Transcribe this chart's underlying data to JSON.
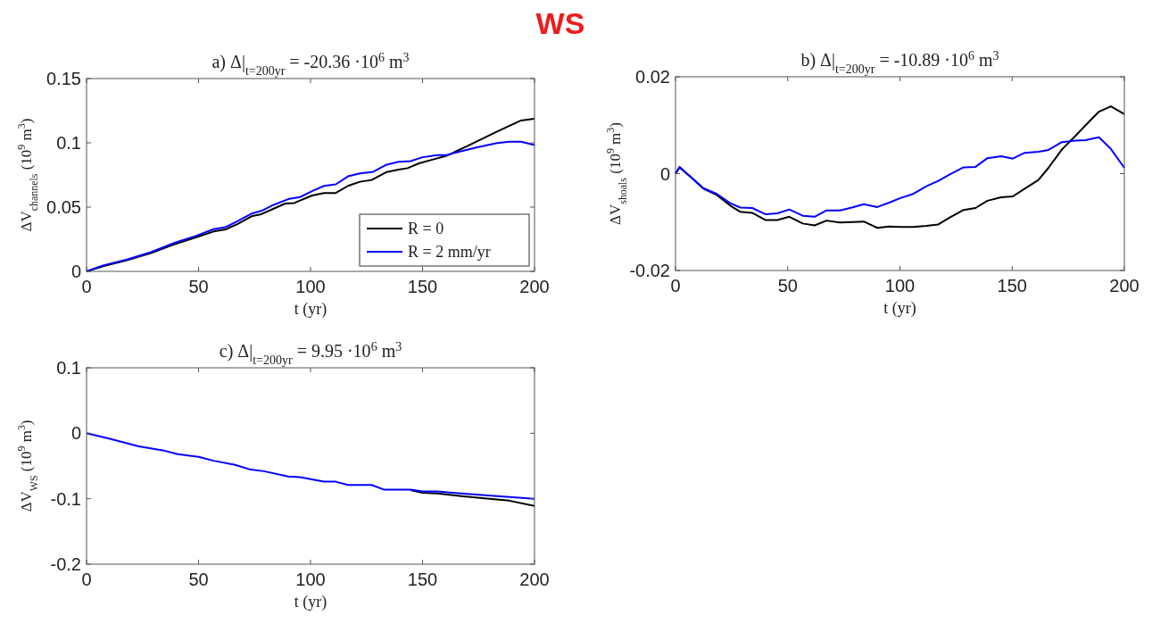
{
  "chart_data": [
    {
      "type": "line",
      "title": "a) Δ|$_{t=200yr}$ = -20.36 ·10$^{6}$ m$^{3}$",
      "annotations": [
        "WS"
      ],
      "xlabel": "t (yr)",
      "ylabel": "ΔV$_{channels}$ (10$^{9}$ m$^{3}$)",
      "xlim": [
        0,
        200
      ],
      "xticks": [
        0,
        50,
        100,
        150,
        200
      ],
      "ylim": [
        0,
        0.15
      ],
      "yticks": [
        0,
        0.05,
        0.1,
        0.15
      ],
      "grid": false,
      "legend": "bottom right",
      "marker": "none",
      "line_style": "solid",
      "series": [
        {
          "name": "R = 0",
          "color": "#000000",
          "x": [
            0,
            7.3,
            18,
            28.7,
            39.3,
            48.7,
            56.7,
            62,
            67.3,
            74,
            78,
            83.3,
            88.7,
            92.7,
            100.7,
            106,
            111.3,
            116.7,
            122,
            127.3,
            134,
            139.3,
            143.3,
            148.7,
            154,
            160.7,
            170,
            183.3,
            194,
            200
          ],
          "values": [
            0,
            0.004,
            0.0087,
            0.0142,
            0.0211,
            0.0264,
            0.031,
            0.0326,
            0.0367,
            0.0431,
            0.0445,
            0.0486,
            0.0528,
            0.0532,
            0.059,
            0.061,
            0.061,
            0.0665,
            0.0697,
            0.0711,
            0.0773,
            0.0791,
            0.0803,
            0.0842,
            0.0867,
            0.0899,
            0.0975,
            0.1087,
            0.1174,
            0.1188
          ]
        },
        {
          "name": "R = 2 mm/yr",
          "color": "#0000ff",
          "x": [
            0,
            7.3,
            18,
            28.7,
            39.3,
            48.7,
            56.7,
            62,
            67.3,
            74,
            78,
            83.3,
            90,
            95.3,
            100.7,
            106,
            111.3,
            116.7,
            122,
            128,
            134,
            139.3,
            144.7,
            150,
            156.7,
            160.7,
            164.7,
            174,
            183.3,
            188.7,
            194,
            200
          ],
          "values": [
            0,
            0.0046,
            0.0092,
            0.0149,
            0.0222,
            0.0275,
            0.0328,
            0.0344,
            0.039,
            0.0452,
            0.047,
            0.0516,
            0.0562,
            0.0578,
            0.0624,
            0.0665,
            0.0677,
            0.0739,
            0.0762,
            0.0775,
            0.083,
            0.0853,
            0.0858,
            0.0888,
            0.0904,
            0.0904,
            0.0924,
            0.0963,
            0.0998,
            0.1009,
            0.1009,
            0.0982
          ]
        }
      ]
    },
    {
      "type": "line",
      "title": "b) Δ|$_{t=200yr}$ = -10.89 ·10$^{6}$ m$^{3}$",
      "xlabel": "t (yr)",
      "ylabel": "ΔV$_{shoals}$ (10$^{9}$ m$^{3}$)",
      "xlim": [
        0,
        200
      ],
      "xticks": [
        0,
        50,
        100,
        150,
        200
      ],
      "ylim": [
        -0.02,
        0.02
      ],
      "yticks": [
        -0.02,
        0,
        0.02
      ],
      "grid": false,
      "marker": "none",
      "line_style": "solid",
      "series": [
        {
          "color": "#000000",
          "x": [
            0,
            1.8,
            7.8,
            12.4,
            18.4,
            24.4,
            28.9,
            34.2,
            40.2,
            45.4,
            50.7,
            56.7,
            62,
            67.3,
            73.3,
            78.6,
            83.9,
            89.9,
            95.2,
            100.5,
            105.8,
            111.8,
            117.1,
            122.4,
            128.4,
            133.7,
            139,
            145.1,
            150.3,
            155.6,
            161.7,
            166.2,
            172.2,
            178.2,
            184.2,
            188.7,
            194,
            200
          ],
          "values": [
            0,
            0.0013,
            -0.0011,
            -0.0031,
            -0.0044,
            -0.0066,
            -0.0079,
            -0.0081,
            -0.0096,
            -0.0096,
            -0.0089,
            -0.0103,
            -0.0107,
            -0.0097,
            -0.0101,
            -0.01,
            -0.0099,
            -0.0112,
            -0.0109,
            -0.011,
            -0.011,
            -0.0108,
            -0.0105,
            -0.009,
            -0.0075,
            -0.0071,
            -0.0056,
            -0.0049,
            -0.0047,
            -0.0031,
            -0.0013,
            0.0012,
            0.005,
            0.0078,
            0.0107,
            0.0128,
            0.0139,
            0.0123
          ]
        },
        {
          "color": "#0000ff",
          "x": [
            0,
            1.8,
            7.8,
            12.4,
            18.4,
            24.4,
            28.9,
            34.2,
            40.2,
            45.4,
            50.7,
            56.7,
            62,
            67.3,
            73.3,
            78.6,
            83.9,
            89.9,
            95.2,
            100.5,
            105.8,
            111.8,
            117.1,
            122.4,
            128.4,
            133.7,
            139,
            145.1,
            150.3,
            155.6,
            161.7,
            166.2,
            172.2,
            178.2,
            182.7,
            188.7,
            194,
            200
          ],
          "values": [
            0,
            0.0014,
            -0.0011,
            -0.003,
            -0.0042,
            -0.0061,
            -0.007,
            -0.0071,
            -0.0084,
            -0.0082,
            -0.0074,
            -0.0087,
            -0.0089,
            -0.0076,
            -0.0076,
            -0.007,
            -0.0063,
            -0.0069,
            -0.006,
            -0.005,
            -0.0042,
            -0.0026,
            -0.0015,
            -0.0001,
            0.0013,
            0.0014,
            0.0032,
            0.0036,
            0.0031,
            0.0043,
            0.0045,
            0.0049,
            0.0065,
            0.0068,
            0.0069,
            0.0075,
            0.0051,
            0.0012
          ]
        }
      ]
    },
    {
      "type": "line",
      "title": "c) Δ|$_{t=200yr}$ = 9.95 ·10$^{6}$ m$^{3}$",
      "xlabel": "t (yr)",
      "ylabel": "ΔV$_{WS}$ (10$^{9}$ m$^{3}$)",
      "xlim": [
        0,
        200
      ],
      "xticks": [
        0,
        50,
        100,
        150,
        200
      ],
      "ylim": [
        -0.2,
        0.1
      ],
      "yticks": [
        -0.2,
        -0.1,
        0,
        0.1
      ],
      "grid": false,
      "marker": "none",
      "line_style": "solid",
      "series": [
        {
          "color": "#000000",
          "x": [
            144.7,
            150,
            156.7,
            167.3,
            176.7,
            188.7,
            200
          ],
          "values": [
            -0.087,
            -0.091,
            -0.092,
            -0.096,
            -0.099,
            -0.103,
            -0.111
          ]
        },
        {
          "color": "#0000ff",
          "x": [
            0,
            10,
            23.3,
            34,
            40.7,
            50,
            56.7,
            66,
            72.7,
            79.3,
            90,
            95.3,
            106,
            111.3,
            116.7,
            127.3,
            132.7,
            144.7,
            150,
            156.7,
            167.3,
            183.3,
            200
          ],
          "values": [
            0,
            -0.008,
            -0.02,
            -0.026,
            -0.032,
            -0.036,
            -0.042,
            -0.048,
            -0.055,
            -0.058,
            -0.066,
            -0.067,
            -0.074,
            -0.074,
            -0.079,
            -0.079,
            -0.086,
            -0.086,
            -0.089,
            -0.089,
            -0.092,
            -0.096,
            -0.1
          ]
        }
      ]
    }
  ]
}
